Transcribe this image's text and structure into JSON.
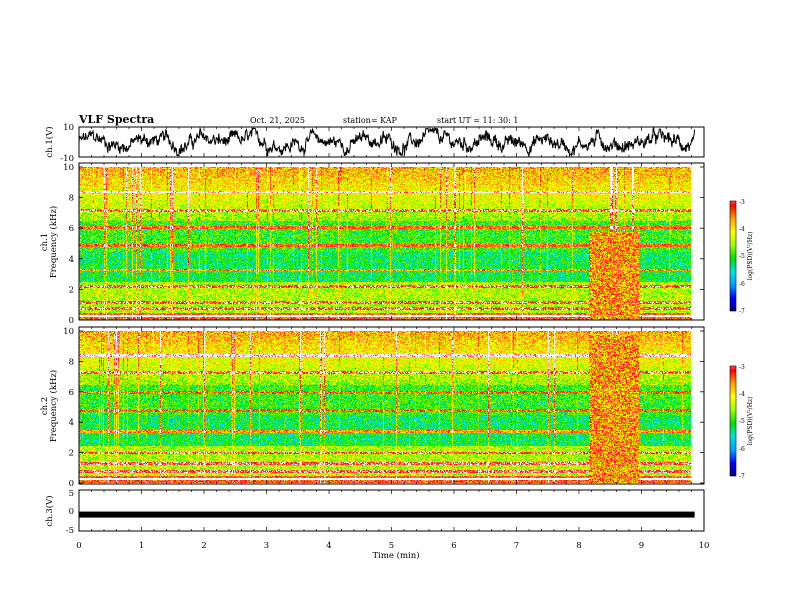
{
  "header": {
    "title": "VLF Spectra",
    "date": "Oct. 21, 2025",
    "station": "station= KAP",
    "start": "start  UT  =   11: 30: 1"
  },
  "colors": {
    "colormap": [
      "#000080",
      "#0000ff",
      "#00a0ff",
      "#00e0e0",
      "#00e000",
      "#a0ff00",
      "#ffff00",
      "#ffa000",
      "#ff0000",
      "#ffffff"
    ],
    "trace": "#000000"
  },
  "chart_data": [
    {
      "type": "line",
      "name": "ch.1 waveform",
      "ylabel": "ch.1(V)",
      "ylim": [
        -10,
        10
      ],
      "ytick_labels": [
        "10",
        "-10"
      ],
      "xlim": [
        0,
        10
      ]
    },
    {
      "type": "heatmap",
      "name": "ch.1 spectrogram",
      "ylabel_top": "ch.1",
      "ylabel": "Frequency  (kHz)",
      "ylim": [
        0,
        10
      ],
      "ytick_labels": [
        "0",
        "2",
        "4",
        "6",
        "8",
        "10"
      ],
      "xlim": [
        0,
        9.85
      ],
      "colorbar": {
        "label": "log(PSD)(V²/Hz)",
        "range": [
          -7,
          -3
        ],
        "tick_labels": [
          "-3",
          "-4",
          "-5",
          "-6",
          "-7"
        ]
      },
      "features": {
        "strong_band_time_min": [
          8.2,
          9.0
        ],
        "strong_band_freq_khz": [
          0,
          5.8
        ],
        "line_freqs_khz": [
          0.3,
          0.8,
          1.2,
          2.2,
          3.3,
          4.9,
          6.1,
          7.2,
          8.4
        ]
      }
    },
    {
      "type": "heatmap",
      "name": "ch.2 spectrogram",
      "ylabel_top": "ch.2",
      "ylabel": "Frequency  (kHz)",
      "ylim": [
        0,
        10
      ],
      "ytick_labels": [
        "0",
        "2",
        "4",
        "6",
        "8",
        "10"
      ],
      "xlim": [
        0,
        9.85
      ],
      "colorbar": {
        "label": "log(PSD)(V²/Hz)",
        "range": [
          -7,
          -3
        ],
        "tick_labels": [
          "-3",
          "-4",
          "-5",
          "-6",
          "-7"
        ]
      },
      "features": {
        "strong_band_time_min": [
          8.2,
          9.0
        ],
        "strong_band_freq_khz": [
          0,
          9.8
        ],
        "line_freqs_khz": [
          0.3,
          0.8,
          1.3,
          2.0,
          3.4,
          4.8,
          6.0,
          7.3,
          8.4
        ]
      }
    },
    {
      "type": "line",
      "name": "ch.3 level",
      "ylabel": "ch.3(V)",
      "ylim": [
        -5,
        5
      ],
      "ytick_labels": [
        "5",
        "0",
        "-5"
      ],
      "x": [
        0,
        9.85
      ],
      "y": [
        -1,
        -1
      ],
      "xlim": [
        0,
        10
      ]
    }
  ],
  "xaxis": {
    "label": "Time  (min)",
    "tick_labels": [
      "0",
      "1",
      "2",
      "3",
      "4",
      "5",
      "6",
      "7",
      "8",
      "9",
      "10"
    ],
    "range": [
      0,
      10
    ]
  }
}
